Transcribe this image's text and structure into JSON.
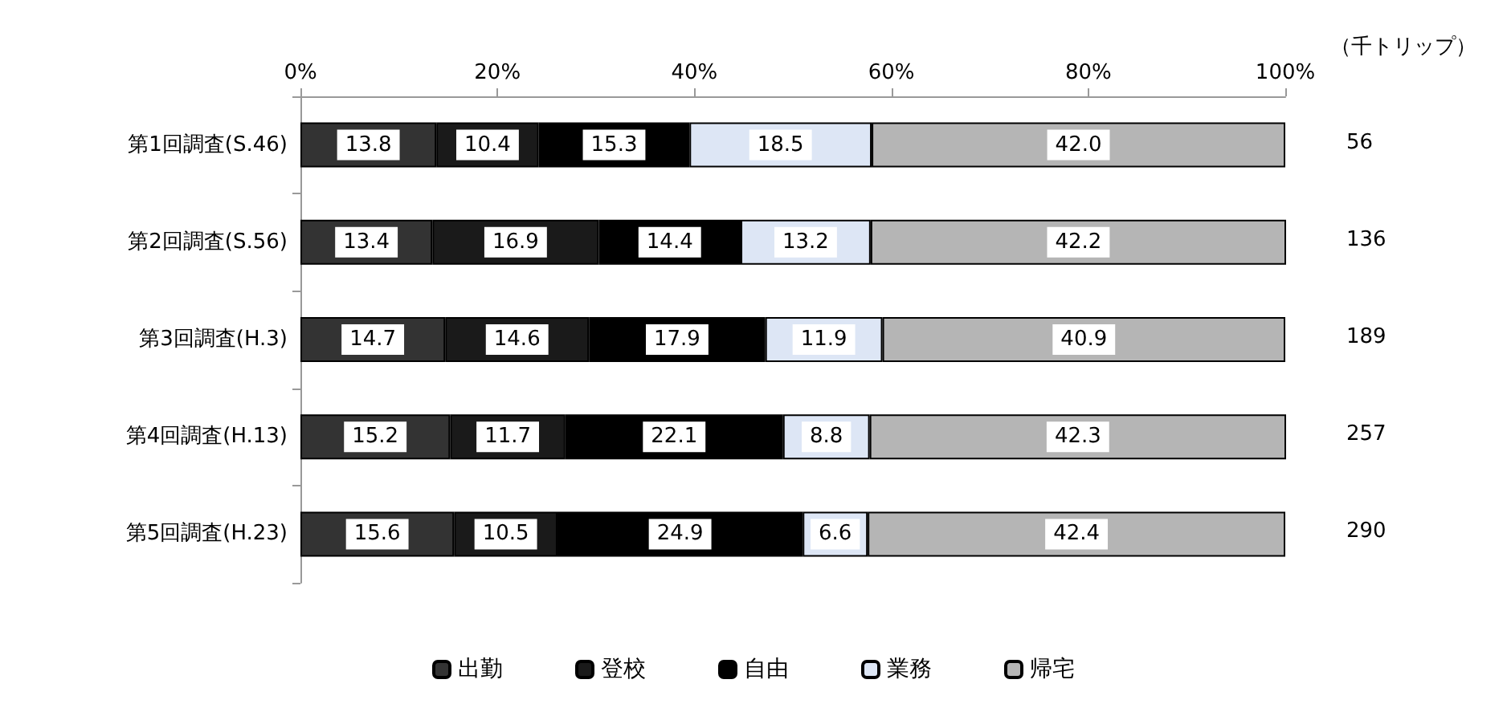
{
  "chart_data": {
    "type": "bar",
    "orientation": "horizontal",
    "stacked": true,
    "categories": [
      "第1回調査(S.46)",
      "第2回調査(S.56)",
      "第3回調査(H.3)",
      "第4回調査(H.13)",
      "第5回調査(H.23)"
    ],
    "series": [
      {
        "name": "出勤",
        "color": "#333333",
        "values": [
          13.8,
          13.4,
          14.7,
          15.2,
          15.6
        ],
        "value_labels": [
          "13.8",
          "13.4",
          "14.7",
          "15.2",
          "15.6"
        ]
      },
      {
        "name": "登校",
        "color": "#1a1a1a",
        "values": [
          10.4,
          16.9,
          14.6,
          11.7,
          10.5
        ],
        "value_labels": [
          "10.4",
          "16.9",
          "14.6",
          "11.7",
          "10.5"
        ]
      },
      {
        "name": "自由",
        "color": "#000000",
        "values": [
          15.3,
          14.4,
          17.9,
          22.1,
          24.9
        ],
        "value_labels": [
          "15.3",
          "14.4",
          "17.9",
          "22.1",
          "24.9"
        ]
      },
      {
        "name": "業務",
        "color": "#dde6f5",
        "values": [
          18.5,
          13.2,
          11.9,
          8.8,
          6.6
        ],
        "value_labels": [
          "18.5",
          "13.2",
          "11.9",
          "8.8",
          "6.6"
        ]
      },
      {
        "name": "帰宅",
        "color": "#b5b5b5",
        "values": [
          42.0,
          42.2,
          40.9,
          42.3,
          42.4
        ],
        "value_labels": [
          "42.0",
          "42.2",
          "40.9",
          "42.3",
          "42.4"
        ]
      }
    ],
    "xlim": [
      0,
      100
    ],
    "xticks": [
      {
        "value": 0,
        "label": "0%"
      },
      {
        "value": 20,
        "label": "20%"
      },
      {
        "value": 40,
        "label": "40%"
      },
      {
        "value": 60,
        "label": "60%"
      },
      {
        "value": 80,
        "label": "80%"
      },
      {
        "value": 100,
        "label": "100%"
      }
    ],
    "annotations": [
      "（千トリップ）",
      "56",
      "136",
      "189",
      "257",
      "290"
    ],
    "legend": "bottom",
    "grid": false
  }
}
